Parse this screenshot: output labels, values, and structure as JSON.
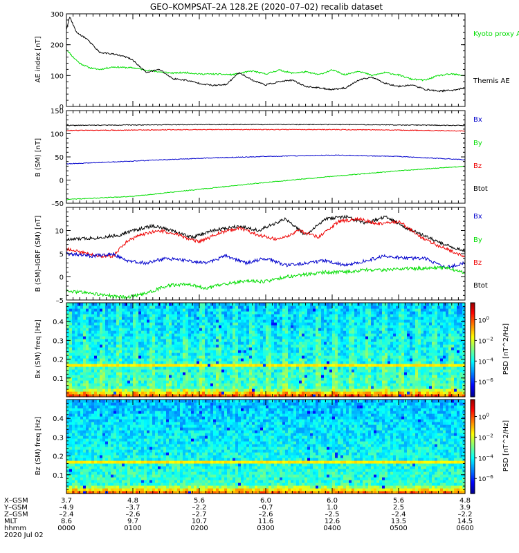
{
  "title": "GEO–KOMPSAT–2A 128.2E (2020–07–02) recalib dataset",
  "x_axis": {
    "xlim": [
      0,
      6
    ],
    "unit": "hours since 2020-07-02 00:00",
    "tick_positions": [
      0,
      1,
      2,
      3,
      4,
      5,
      6
    ],
    "minor_per_major": 10,
    "rows": [
      {
        "label": "X–GSM",
        "values": [
          "3.7",
          "4.8",
          "5.6",
          "6.0",
          "6.0",
          "5.6",
          "4.8"
        ]
      },
      {
        "label": "Y–GSM",
        "values": [
          "–4.9",
          "–3.7",
          "–2.2",
          "–0.7",
          "1.0",
          "2.5",
          "3.9"
        ]
      },
      {
        "label": "Z–GSM",
        "values": [
          "–2.4",
          "–2.6",
          "–2.7",
          "–2.6",
          "–2.5",
          "–2.4",
          "–2.2"
        ]
      },
      {
        "label": "MLT",
        "values": [
          "8.6",
          "9.7",
          "10.7",
          "11.6",
          "12.6",
          "13.5",
          "14.5"
        ]
      },
      {
        "label": "hhmm",
        "values": [
          "0000",
          "0100",
          "0200",
          "0300",
          "0400",
          "0500",
          "0600"
        ]
      }
    ],
    "date_label": "2020 Jul 02"
  },
  "chart_data": [
    {
      "type": "line",
      "name": "ae-panel",
      "ylabel": "AE index [nT]",
      "ylim": [
        0,
        300
      ],
      "yticks": [
        0,
        100,
        200,
        300
      ],
      "series": [
        {
          "name": "Kyoto proxy AE",
          "legend": "Kyoto proxy AE",
          "color": "#00dd00",
          "x": [
            0,
            0.1,
            0.2,
            0.35,
            0.5,
            0.7,
            1.0,
            1.2,
            1.4,
            1.6,
            1.8,
            2.0,
            2.2,
            2.5,
            2.8,
            3.0,
            3.2,
            3.4,
            3.6,
            3.8,
            4.0,
            4.2,
            4.4,
            4.6,
            4.8,
            5.0,
            5.2,
            5.4,
            5.6,
            5.8,
            6.0
          ],
          "y": [
            185,
            160,
            140,
            125,
            120,
            128,
            125,
            118,
            112,
            108,
            110,
            105,
            105,
            103,
            115,
            105,
            118,
            108,
            112,
            103,
            118,
            103,
            115,
            100,
            110,
            102,
            88,
            85,
            100,
            105,
            100
          ]
        },
        {
          "name": "Themis AE",
          "legend": "Themis AE",
          "color": "#000000",
          "x": [
            0,
            0.05,
            0.15,
            0.3,
            0.5,
            0.7,
            0.9,
            1.0,
            1.2,
            1.4,
            1.6,
            1.8,
            2.0,
            2.2,
            2.4,
            2.6,
            2.8,
            3.0,
            3.2,
            3.4,
            3.6,
            3.8,
            4.0,
            4.2,
            4.4,
            4.6,
            4.8,
            5.0,
            5.2,
            5.4,
            5.6,
            5.8,
            6.0
          ],
          "y": [
            250,
            290,
            240,
            220,
            175,
            170,
            160,
            150,
            110,
            120,
            90,
            85,
            75,
            68,
            70,
            110,
            85,
            70,
            80,
            85,
            65,
            60,
            55,
            60,
            85,
            95,
            75,
            65,
            70,
            55,
            50,
            52,
            60
          ]
        }
      ]
    },
    {
      "type": "line",
      "name": "b-panel",
      "ylabel": "B (SM) [nT]",
      "ylim": [
        -50,
        150
      ],
      "yticks": [
        -50,
        0,
        50,
        100,
        150
      ],
      "legend": [
        "Bx",
        "By",
        "Bz",
        "Btot"
      ],
      "series": [
        {
          "name": "Btot",
          "color": "#000000",
          "x": [
            0,
            1,
            2,
            3,
            4,
            5,
            6
          ],
          "y": [
            118,
            119,
            120,
            120,
            120,
            119,
            118
          ]
        },
        {
          "name": "Bz",
          "color": "#ee0000",
          "x": [
            0,
            1,
            2,
            3,
            4,
            5,
            6
          ],
          "y": [
            107,
            108,
            109,
            109,
            109,
            108,
            106
          ]
        },
        {
          "name": "Bx",
          "color": "#0000cc",
          "x": [
            0,
            1,
            2,
            3,
            4,
            5,
            6
          ],
          "y": [
            35,
            41,
            47,
            51,
            54,
            51,
            44
          ]
        },
        {
          "name": "By",
          "color": "#00dd00",
          "x": [
            0,
            1,
            2,
            3,
            4,
            5,
            6
          ],
          "y": [
            -42,
            -35,
            -20,
            -5,
            8,
            20,
            30
          ]
        }
      ]
    },
    {
      "type": "line",
      "name": "db-panel",
      "ylabel": "B (SM)–IGRF (SM) [nT]",
      "ylim": [
        -5,
        15
      ],
      "yticks": [
        -5,
        0,
        5,
        10
      ],
      "legend": [
        "Bx",
        "By",
        "Bz",
        "Btot"
      ],
      "series": [
        {
          "name": "Btot",
          "color": "#000000",
          "x": [
            0,
            0.5,
            0.8,
            1.0,
            1.3,
            1.6,
            1.9,
            2.2,
            2.6,
            2.9,
            3.3,
            3.6,
            3.9,
            4.2,
            4.5,
            4.8,
            5.2,
            5.6,
            6.0
          ],
          "y": [
            8,
            8.5,
            9,
            10,
            11,
            10,
            8.5,
            10,
            11,
            10,
            12.5,
            9,
            12.5,
            13,
            11.5,
            13,
            10,
            7.5,
            5.5
          ]
        },
        {
          "name": "Bz",
          "color": "#ee0000",
          "x": [
            0,
            0.3,
            0.5,
            0.7,
            0.9,
            1.1,
            1.4,
            1.7,
            2.0,
            2.3,
            2.6,
            2.9,
            3.2,
            3.5,
            3.8,
            4.1,
            4.4,
            4.7,
            5.0,
            5.4,
            5.8,
            6.0
          ],
          "y": [
            6,
            5,
            4.5,
            4.5,
            7.5,
            9,
            10,
            9,
            7.5,
            9.5,
            10.5,
            9,
            8,
            10,
            8.5,
            12,
            12.5,
            11.5,
            12,
            8,
            5.5,
            4.5
          ]
        },
        {
          "name": "Bx",
          "color": "#0000cc",
          "x": [
            0,
            0.4,
            0.7,
            0.9,
            1.2,
            1.5,
            1.8,
            2.1,
            2.4,
            2.7,
            3.0,
            3.3,
            3.6,
            3.9,
            4.2,
            4.5,
            4.8,
            5.1,
            5.4,
            5.7,
            6.0
          ],
          "y": [
            5,
            4.5,
            5,
            3.5,
            3,
            4,
            3.5,
            3,
            4.5,
            3,
            4,
            2.5,
            3,
            3.5,
            2.5,
            3.5,
            4.5,
            4,
            4,
            2,
            3
          ]
        },
        {
          "name": "By",
          "color": "#00dd00",
          "x": [
            0,
            0.3,
            0.6,
            0.9,
            1.2,
            1.5,
            1.8,
            2.1,
            2.4,
            2.7,
            3.0,
            3.3,
            3.6,
            3.9,
            4.2,
            4.5,
            4.8,
            5.1,
            5.4,
            5.7,
            6.0
          ],
          "y": [
            -3,
            -3.5,
            -4,
            -4.5,
            -3.5,
            -2,
            -1.5,
            -2.5,
            -1.5,
            -1,
            -1,
            0,
            0.5,
            1,
            1,
            1.5,
            1.5,
            1.8,
            1.8,
            2,
            1
          ]
        }
      ]
    },
    {
      "type": "heatmap",
      "name": "bx-spectrogram",
      "ylabel": "Bx (SM) freq [Hz]",
      "ylim": [
        0,
        0.5
      ],
      "yticks": [
        0.1,
        0.2,
        0.3,
        0.4
      ],
      "colorbar": {
        "label": "PSD [nT^2/Hz]",
        "ticks": [
          "10^0",
          "10^−2",
          "10^−4",
          "10^−6"
        ]
      }
    },
    {
      "type": "heatmap",
      "name": "bz-spectrogram",
      "ylabel": "Bz (SM) freq [Hz]",
      "ylim": [
        0,
        0.5
      ],
      "yticks": [
        0.1,
        0.2,
        0.3,
        0.4
      ],
      "colorbar": {
        "label": "PSD [nT^2/Hz]",
        "ticks": [
          "10^0",
          "10^−2",
          "10^−4",
          "10^−6"
        ]
      }
    }
  ]
}
